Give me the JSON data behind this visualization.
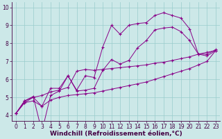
{
  "xlabel": "Windchill (Refroidissement éolien,°C)",
  "bg_color": "#cce8e8",
  "line_color": "#880088",
  "grid_color": "#99cccc",
  "axis_color": "#440044",
  "tick_color": "#440044",
  "xlim": [
    -0.5,
    23.5
  ],
  "ylim": [
    3.7,
    10.3
  ],
  "xticks": [
    0,
    1,
    2,
    3,
    4,
    5,
    6,
    7,
    8,
    9,
    10,
    11,
    12,
    13,
    14,
    15,
    16,
    17,
    18,
    19,
    20,
    21,
    22,
    23
  ],
  "yticks": [
    4,
    5,
    6,
    7,
    8,
    9,
    10
  ],
  "series": [
    [
      4.1,
      4.7,
      5.0,
      4.5,
      5.5,
      5.5,
      6.2,
      5.4,
      6.2,
      6.1,
      7.8,
      9.0,
      8.5,
      9.0,
      9.1,
      9.15,
      9.55,
      9.7,
      9.55,
      9.4,
      8.8,
      7.4,
      7.3,
      7.6
    ],
    [
      4.1,
      4.8,
      5.05,
      3.1,
      5.1,
      5.35,
      6.2,
      5.35,
      5.4,
      5.5,
      6.5,
      7.1,
      6.85,
      7.05,
      7.75,
      8.15,
      8.75,
      8.85,
      8.9,
      8.65,
      8.15,
      7.4,
      7.4,
      7.65
    ],
    [
      4.1,
      4.8,
      5.0,
      5.1,
      5.3,
      5.4,
      5.55,
      6.45,
      6.55,
      6.5,
      6.55,
      6.6,
      6.65,
      6.7,
      6.75,
      6.8,
      6.9,
      6.95,
      7.05,
      7.15,
      7.25,
      7.4,
      7.5,
      7.6
    ],
    [
      4.1,
      4.7,
      4.8,
      4.5,
      4.85,
      5.0,
      5.1,
      5.15,
      5.2,
      5.25,
      5.35,
      5.45,
      5.55,
      5.65,
      5.75,
      5.85,
      6.0,
      6.15,
      6.3,
      6.45,
      6.6,
      6.8,
      7.0,
      7.6
    ]
  ],
  "font_color": "#440044",
  "font_size": 5.5,
  "label_font_size": 6.5
}
